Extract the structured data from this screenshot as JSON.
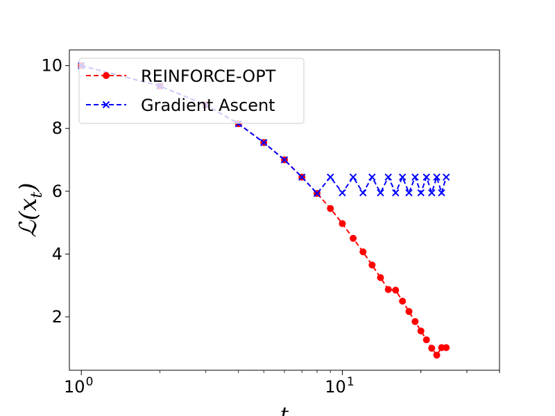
{
  "chart_data": {
    "type": "line",
    "title": "",
    "xlabel": "t",
    "ylabel": "ℒ(x_t)",
    "xscale": "log",
    "xlim": [
      0.9,
      40
    ],
    "ylim": [
      0.3,
      10.5
    ],
    "x_ticks": [
      {
        "value": 1,
        "base": "10",
        "exp": "0"
      },
      {
        "value": 10,
        "base": "10",
        "exp": "1"
      }
    ],
    "y_ticks": [
      2,
      4,
      6,
      8,
      10
    ],
    "grid": false,
    "legend_position": "upper-left",
    "series": [
      {
        "name": "REINFORCE-OPT",
        "color": "#ff0000",
        "linestyle": "dashed",
        "marker": "circle",
        "x": [
          1,
          2,
          3,
          4,
          5,
          6,
          7,
          8,
          9,
          10,
          11,
          12,
          13,
          14,
          15,
          16,
          17,
          18,
          19,
          20,
          21,
          22,
          23,
          24,
          25
        ],
        "y": [
          10.0,
          9.35,
          8.75,
          8.15,
          7.55,
          7.0,
          6.45,
          5.93,
          5.45,
          4.97,
          4.5,
          4.07,
          3.65,
          3.25,
          2.87,
          2.85,
          2.5,
          2.17,
          1.85,
          1.55,
          1.27,
          1.0,
          0.78,
          1.02,
          1.02
        ]
      },
      {
        "name": "Gradient Ascent",
        "color": "#0000ff",
        "linestyle": "dashed",
        "marker": "x",
        "x": [
          1,
          2,
          3,
          4,
          5,
          6,
          7,
          8,
          9,
          10,
          11,
          12,
          13,
          14,
          15,
          16,
          17,
          18,
          19,
          20,
          21,
          22,
          23,
          24,
          25
        ],
        "y": [
          10.0,
          9.35,
          8.75,
          8.15,
          7.55,
          7.0,
          6.45,
          5.93,
          6.45,
          5.95,
          6.45,
          5.95,
          6.45,
          5.95,
          6.45,
          5.95,
          6.45,
          5.95,
          6.45,
          5.95,
          6.45,
          5.95,
          6.45,
          5.95,
          6.45
        ]
      }
    ]
  }
}
